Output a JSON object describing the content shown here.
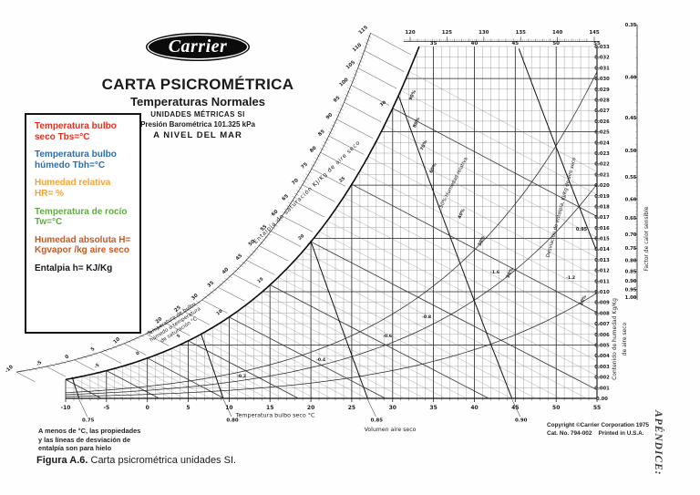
{
  "header": {
    "logo": "Carrier",
    "title": "CARTA PSICROMÉTRICA",
    "subtitle": "Temperaturas Normales",
    "units_line": "UNIDADES MÉTRICAS SI",
    "pressure_line": "Presión Barométrica 101.325 kPa",
    "sea_level_line": "A NIVEL DEL MAR"
  },
  "legend_box": {
    "items": [
      {
        "text": "Temperatura bulbo seco Tbs=°C",
        "color": "#e0301e"
      },
      {
        "text": "Temperatura bulbo húmedo Tbh=°C",
        "color": "#2271b8"
      },
      {
        "text": "Humedad relativa HR=  %",
        "color": "#f2a33a"
      },
      {
        "text": "Temperatura de rocío Tw=°C",
        "color": "#5fad41"
      },
      {
        "text": "Humedad absoluta H= Kgvapor /kg aire seco",
        "color": "#c65a24"
      },
      {
        "text": "Entalpia h=  KJ/Kg",
        "color": "#1a1a1a"
      }
    ]
  },
  "footer": {
    "note_lines": [
      "A menos de °C, las propiedades",
      "y las líneas de desviación de",
      "entalpía son para hielo"
    ],
    "caption_bold": "Figura A.6.",
    "caption_rest": " Carta psicrométrica unidades SI.",
    "copyright_line1": "Copyright ©Carrier Corporation 1975",
    "copyright_line2": "Cat. No. 794-002    Printed in U.S.A.",
    "appendix": "APÉNDICE:"
  },
  "chart_data": {
    "type": "line",
    "title": "Carta psicrométrica Carrier — unidades SI",
    "pressure_kpa": 101.325,
    "x_axis": {
      "label": "Temperatura bulbo seco °C",
      "min": -10,
      "max": 55,
      "tick_step": 1,
      "tick_labels": [
        -10,
        -5,
        0,
        5,
        10,
        15,
        20,
        25,
        30,
        35,
        40,
        45,
        50,
        55
      ]
    },
    "humidity_axis": {
      "label_lines": [
        "Contenido de humedad Kg/Kg",
        "de aire seco"
      ],
      "min": 0,
      "max": 0.033,
      "tick_step": 0.001,
      "bottom_label": "0.00"
    },
    "top_drybulb_labels": [
      35,
      40,
      45,
      50,
      55
    ],
    "enthalpy_scale": {
      "label": "Entalpía de saturación KJ/Kg de aire seco",
      "min": -10,
      "max": 115,
      "label_step": 5,
      "top_labels": [
        120,
        125,
        130,
        135,
        140,
        145
      ]
    },
    "wet_bulb": {
      "label_lines": [
        "Temperatura de bulbo",
        "húmedo o temperatura",
        "de saturación °C"
      ],
      "line_step": 1,
      "curve_labels": [
        -5,
        0,
        5,
        10,
        15,
        20,
        25,
        30
      ]
    },
    "rh_curves": {
      "percents": [
        10,
        20,
        30,
        40,
        50,
        60,
        70,
        80,
        90
      ],
      "main_label": "50% Humedad relativa"
    },
    "volume_lines": {
      "values": [
        0.75,
        0.8,
        0.85,
        0.9,
        0.95
      ],
      "below_axis_labels": [
        "0.75",
        "0.80",
        "0.85",
        "0.90"
      ],
      "in_chart_label": "0.95",
      "axis_label": "Volumen aire seco"
    },
    "shf_scale": {
      "label": "Factor de calor sensible",
      "values": [
        0.35,
        0.4,
        0.45,
        0.5,
        0.55,
        0.6,
        0.65,
        0.7,
        0.75,
        0.8,
        0.85,
        0.9,
        0.95,
        1.0
      ]
    },
    "deviation": {
      "label": "Desviación de entalpía, KJ/Kg de aire seco",
      "value_labels": [
        "-0.2",
        "-0.4",
        "-0.6",
        "-0.8",
        "-1.2",
        "-1.6"
      ]
    }
  }
}
